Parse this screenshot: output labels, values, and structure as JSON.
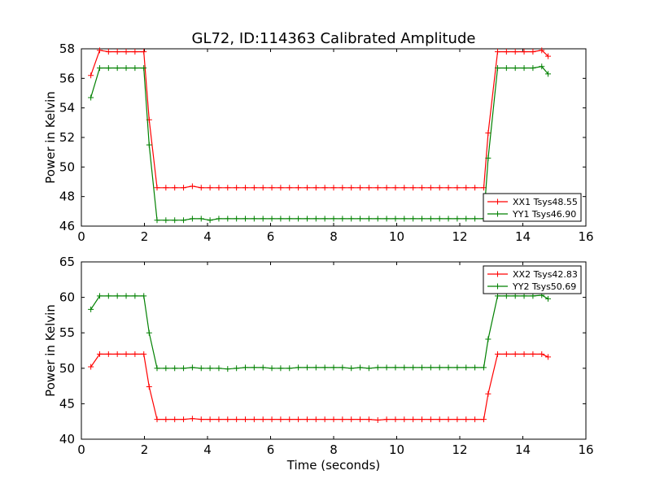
{
  "figure_title": "GL72, ID:114363 Calibrated Amplitude",
  "chart_data": [
    {
      "type": "line",
      "title": "GL72, ID:114363 Calibrated Amplitude",
      "xlabel": "",
      "ylabel": "Power in Kelvin",
      "xlim": [
        0,
        16
      ],
      "ylim": [
        46,
        58
      ],
      "xticks": [
        "0",
        "2",
        "4",
        "6",
        "8",
        "10",
        "12",
        "14",
        "16"
      ],
      "yticks": [
        "46",
        "48",
        "50",
        "52",
        "54",
        "56",
        "58"
      ],
      "grid": false,
      "legend_position": "lower-right",
      "x": [
        0.3,
        0.58,
        0.86,
        1.14,
        1.42,
        1.7,
        1.98,
        2.15,
        2.4,
        2.68,
        2.96,
        3.24,
        3.52,
        3.8,
        4.08,
        4.36,
        4.64,
        4.92,
        5.2,
        5.48,
        5.76,
        6.04,
        6.32,
        6.6,
        6.88,
        7.16,
        7.44,
        7.72,
        8.0,
        8.28,
        8.56,
        8.84,
        9.12,
        9.4,
        9.68,
        9.96,
        10.24,
        10.52,
        10.8,
        11.08,
        11.36,
        11.64,
        11.92,
        12.2,
        12.48,
        12.76,
        12.9,
        13.2,
        13.48,
        13.76,
        14.04,
        14.32,
        14.6,
        14.8
      ],
      "series": [
        {
          "name": "XX1 Tsys48.55",
          "color": "#ff0000",
          "values": [
            56.2,
            57.9,
            57.8,
            57.8,
            57.8,
            57.8,
            57.8,
            53.2,
            48.6,
            48.6,
            48.6,
            48.6,
            48.7,
            48.6,
            48.6,
            48.6,
            48.6,
            48.6,
            48.6,
            48.6,
            48.6,
            48.6,
            48.6,
            48.6,
            48.6,
            48.6,
            48.6,
            48.6,
            48.6,
            48.6,
            48.6,
            48.6,
            48.6,
            48.6,
            48.6,
            48.6,
            48.6,
            48.6,
            48.6,
            48.6,
            48.6,
            48.6,
            48.6,
            48.6,
            48.6,
            48.6,
            52.3,
            57.8,
            57.8,
            57.8,
            57.8,
            57.8,
            57.9,
            57.5
          ]
        },
        {
          "name": "YY1 Tsys46.90",
          "color": "#008000",
          "values": [
            54.7,
            56.7,
            56.7,
            56.7,
            56.7,
            56.7,
            56.7,
            51.5,
            46.4,
            46.4,
            46.4,
            46.4,
            46.5,
            46.5,
            46.4,
            46.5,
            46.5,
            46.5,
            46.5,
            46.5,
            46.5,
            46.5,
            46.5,
            46.5,
            46.5,
            46.5,
            46.5,
            46.5,
            46.5,
            46.5,
            46.5,
            46.5,
            46.5,
            46.5,
            46.5,
            46.5,
            46.5,
            46.5,
            46.5,
            46.5,
            46.5,
            46.5,
            46.5,
            46.5,
            46.5,
            46.5,
            50.6,
            56.7,
            56.7,
            56.7,
            56.7,
            56.7,
            56.8,
            56.3
          ]
        }
      ]
    },
    {
      "type": "line",
      "title": "",
      "xlabel": "Time (seconds)",
      "ylabel": "Power in Kelvin",
      "xlim": [
        0,
        16
      ],
      "ylim": [
        40,
        65
      ],
      "xticks": [
        "0",
        "2",
        "4",
        "6",
        "8",
        "10",
        "12",
        "14",
        "16"
      ],
      "yticks": [
        "40",
        "45",
        "50",
        "55",
        "60",
        "65"
      ],
      "grid": false,
      "legend_position": "upper-right",
      "x": [
        0.3,
        0.58,
        0.86,
        1.14,
        1.42,
        1.7,
        1.98,
        2.15,
        2.4,
        2.68,
        2.96,
        3.24,
        3.52,
        3.8,
        4.08,
        4.36,
        4.64,
        4.92,
        5.2,
        5.48,
        5.76,
        6.04,
        6.32,
        6.6,
        6.88,
        7.16,
        7.44,
        7.72,
        8.0,
        8.28,
        8.56,
        8.84,
        9.12,
        9.4,
        9.68,
        9.96,
        10.24,
        10.52,
        10.8,
        11.08,
        11.36,
        11.64,
        11.92,
        12.2,
        12.48,
        12.76,
        12.9,
        13.2,
        13.48,
        13.76,
        14.04,
        14.32,
        14.6,
        14.8
      ],
      "series": [
        {
          "name": "XX2 Tsys42.83",
          "color": "#ff0000",
          "values": [
            50.2,
            52.0,
            52.0,
            52.0,
            52.0,
            52.0,
            52.0,
            47.4,
            42.8,
            42.8,
            42.8,
            42.8,
            42.9,
            42.8,
            42.8,
            42.8,
            42.8,
            42.8,
            42.8,
            42.8,
            42.8,
            42.8,
            42.8,
            42.8,
            42.8,
            42.8,
            42.8,
            42.8,
            42.8,
            42.8,
            42.8,
            42.8,
            42.8,
            42.7,
            42.8,
            42.8,
            42.8,
            42.8,
            42.8,
            42.8,
            42.8,
            42.8,
            42.8,
            42.8,
            42.8,
            42.8,
            46.4,
            52.0,
            52.0,
            52.0,
            52.0,
            52.0,
            52.0,
            51.6
          ]
        },
        {
          "name": "YY2 Tsys50.69",
          "color": "#008000",
          "values": [
            58.3,
            60.2,
            60.2,
            60.2,
            60.2,
            60.2,
            60.2,
            55.0,
            50.0,
            50.0,
            50.0,
            50.0,
            50.1,
            50.0,
            50.0,
            50.0,
            49.9,
            50.0,
            50.1,
            50.1,
            50.1,
            50.0,
            50.0,
            50.0,
            50.1,
            50.1,
            50.1,
            50.1,
            50.1,
            50.1,
            50.0,
            50.1,
            50.0,
            50.1,
            50.1,
            50.1,
            50.1,
            50.1,
            50.1,
            50.1,
            50.1,
            50.1,
            50.1,
            50.1,
            50.1,
            50.1,
            54.1,
            60.2,
            60.2,
            60.2,
            60.2,
            60.2,
            60.3,
            59.8
          ]
        }
      ]
    }
  ]
}
